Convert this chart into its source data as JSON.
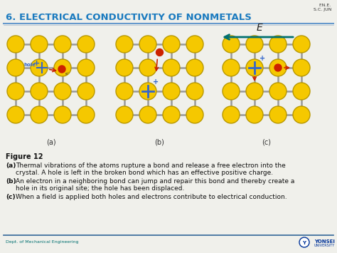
{
  "title": "6. ELECTRICAL CONDUCTIVITY OF NONMETALS",
  "title_color": "#1a7abf",
  "title_fontsize": 9.5,
  "bg_color": "#f0f0eb",
  "atom_color": "#f5c800",
  "atom_edge_color": "#b89800",
  "bond_color": "#999999",
  "subfig_labels": [
    "(a)",
    "(b)",
    "(c)"
  ],
  "figure12_bold": "Figure 12",
  "caption_a": " Thermal vibrations of the atoms rupture a bond and release a free electron into the crystal. A hole is left in the broken bond which has an effective positive charge.",
  "caption_b": " An electron in a neighboring bond can jump and repair this bond and thereby create a hole in its original site; the hole has been displaced.",
  "caption_c": " When a field is applied both holes and electrons contribute to electrical conduction.",
  "hole_color": "#3366cc",
  "electron_color": "#cc2200",
  "footer_left": "Dept. of Mechanical Engineering",
  "footer_right_line1": "F.N.E.",
  "footer_right_line2": "S.C. JUN",
  "E_arrow_color": "#007070",
  "title_line_color": "#6699cc",
  "footer_line_color": "#336699"
}
